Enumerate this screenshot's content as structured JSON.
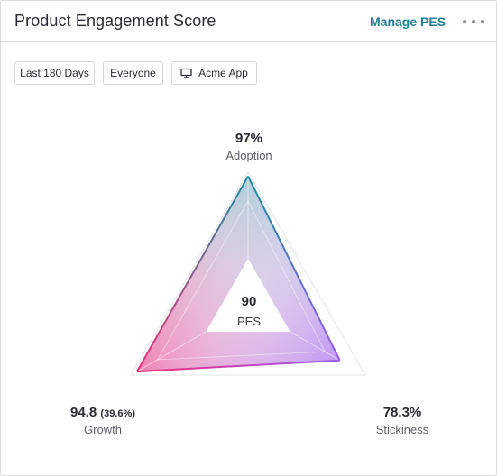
{
  "header": {
    "title": "Product Engagement Score",
    "manage_label": "Manage PES"
  },
  "filters": {
    "range": "Last 180 Days",
    "segment": "Everyone",
    "app": "Acme App",
    "app_icon": "monitor-icon"
  },
  "pes": {
    "score": "90",
    "label": "PES"
  },
  "metrics": {
    "adoption": {
      "value_text": "97%",
      "label": "Adoption",
      "value": 97
    },
    "growth": {
      "value_text": "94.8",
      "sub_text": "(39.6%)",
      "label": "Growth",
      "value": 94.8
    },
    "stickiness": {
      "value_text": "78.3%",
      "label": "Stickiness",
      "value": 78.3
    }
  },
  "colors": {
    "adoption": "#1a8fa0",
    "growth": "#ef2b7a",
    "stickiness": "#9a5cf0",
    "accent": "#1f7e8e"
  }
}
